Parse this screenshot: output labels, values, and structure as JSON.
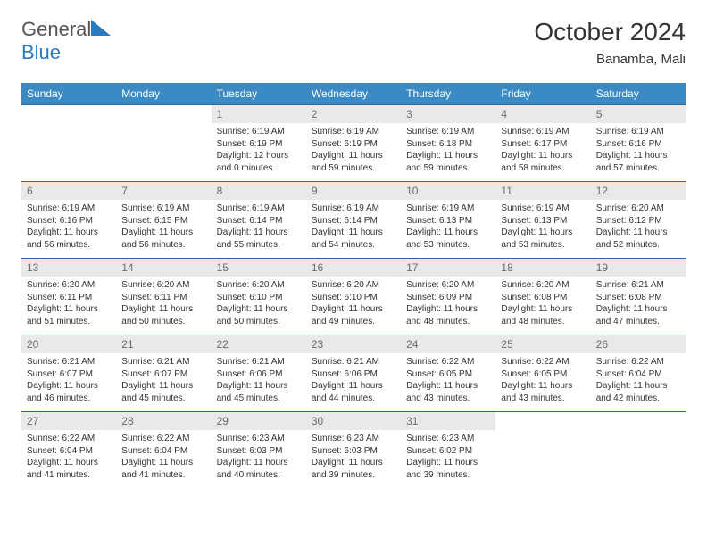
{
  "brand": {
    "name_a": "General",
    "name_b": "Blue",
    "tri_color": "#2a7bbf"
  },
  "title": "October 2024",
  "location": "Banamba, Mali",
  "days_of_week": [
    "Sunday",
    "Monday",
    "Tuesday",
    "Wednesday",
    "Thursday",
    "Friday",
    "Saturday"
  ],
  "header_bg": "#3b8ac4",
  "cells": [
    [
      {
        "n": "",
        "sr": "",
        "ss": "",
        "dl": ""
      },
      {
        "n": "",
        "sr": "",
        "ss": "",
        "dl": ""
      },
      {
        "n": "1",
        "sr": "Sunrise: 6:19 AM",
        "ss": "Sunset: 6:19 PM",
        "dl": "Daylight: 12 hours and 0 minutes."
      },
      {
        "n": "2",
        "sr": "Sunrise: 6:19 AM",
        "ss": "Sunset: 6:19 PM",
        "dl": "Daylight: 11 hours and 59 minutes."
      },
      {
        "n": "3",
        "sr": "Sunrise: 6:19 AM",
        "ss": "Sunset: 6:18 PM",
        "dl": "Daylight: 11 hours and 59 minutes."
      },
      {
        "n": "4",
        "sr": "Sunrise: 6:19 AM",
        "ss": "Sunset: 6:17 PM",
        "dl": "Daylight: 11 hours and 58 minutes."
      },
      {
        "n": "5",
        "sr": "Sunrise: 6:19 AM",
        "ss": "Sunset: 6:16 PM",
        "dl": "Daylight: 11 hours and 57 minutes."
      }
    ],
    [
      {
        "n": "6",
        "sr": "Sunrise: 6:19 AM",
        "ss": "Sunset: 6:16 PM",
        "dl": "Daylight: 11 hours and 56 minutes."
      },
      {
        "n": "7",
        "sr": "Sunrise: 6:19 AM",
        "ss": "Sunset: 6:15 PM",
        "dl": "Daylight: 11 hours and 56 minutes."
      },
      {
        "n": "8",
        "sr": "Sunrise: 6:19 AM",
        "ss": "Sunset: 6:14 PM",
        "dl": "Daylight: 11 hours and 55 minutes."
      },
      {
        "n": "9",
        "sr": "Sunrise: 6:19 AM",
        "ss": "Sunset: 6:14 PM",
        "dl": "Daylight: 11 hours and 54 minutes."
      },
      {
        "n": "10",
        "sr": "Sunrise: 6:19 AM",
        "ss": "Sunset: 6:13 PM",
        "dl": "Daylight: 11 hours and 53 minutes."
      },
      {
        "n": "11",
        "sr": "Sunrise: 6:19 AM",
        "ss": "Sunset: 6:13 PM",
        "dl": "Daylight: 11 hours and 53 minutes."
      },
      {
        "n": "12",
        "sr": "Sunrise: 6:20 AM",
        "ss": "Sunset: 6:12 PM",
        "dl": "Daylight: 11 hours and 52 minutes."
      }
    ],
    [
      {
        "n": "13",
        "sr": "Sunrise: 6:20 AM",
        "ss": "Sunset: 6:11 PM",
        "dl": "Daylight: 11 hours and 51 minutes."
      },
      {
        "n": "14",
        "sr": "Sunrise: 6:20 AM",
        "ss": "Sunset: 6:11 PM",
        "dl": "Daylight: 11 hours and 50 minutes."
      },
      {
        "n": "15",
        "sr": "Sunrise: 6:20 AM",
        "ss": "Sunset: 6:10 PM",
        "dl": "Daylight: 11 hours and 50 minutes."
      },
      {
        "n": "16",
        "sr": "Sunrise: 6:20 AM",
        "ss": "Sunset: 6:10 PM",
        "dl": "Daylight: 11 hours and 49 minutes."
      },
      {
        "n": "17",
        "sr": "Sunrise: 6:20 AM",
        "ss": "Sunset: 6:09 PM",
        "dl": "Daylight: 11 hours and 48 minutes."
      },
      {
        "n": "18",
        "sr": "Sunrise: 6:20 AM",
        "ss": "Sunset: 6:08 PM",
        "dl": "Daylight: 11 hours and 48 minutes."
      },
      {
        "n": "19",
        "sr": "Sunrise: 6:21 AM",
        "ss": "Sunset: 6:08 PM",
        "dl": "Daylight: 11 hours and 47 minutes."
      }
    ],
    [
      {
        "n": "20",
        "sr": "Sunrise: 6:21 AM",
        "ss": "Sunset: 6:07 PM",
        "dl": "Daylight: 11 hours and 46 minutes."
      },
      {
        "n": "21",
        "sr": "Sunrise: 6:21 AM",
        "ss": "Sunset: 6:07 PM",
        "dl": "Daylight: 11 hours and 45 minutes."
      },
      {
        "n": "22",
        "sr": "Sunrise: 6:21 AM",
        "ss": "Sunset: 6:06 PM",
        "dl": "Daylight: 11 hours and 45 minutes."
      },
      {
        "n": "23",
        "sr": "Sunrise: 6:21 AM",
        "ss": "Sunset: 6:06 PM",
        "dl": "Daylight: 11 hours and 44 minutes."
      },
      {
        "n": "24",
        "sr": "Sunrise: 6:22 AM",
        "ss": "Sunset: 6:05 PM",
        "dl": "Daylight: 11 hours and 43 minutes."
      },
      {
        "n": "25",
        "sr": "Sunrise: 6:22 AM",
        "ss": "Sunset: 6:05 PM",
        "dl": "Daylight: 11 hours and 43 minutes."
      },
      {
        "n": "26",
        "sr": "Sunrise: 6:22 AM",
        "ss": "Sunset: 6:04 PM",
        "dl": "Daylight: 11 hours and 42 minutes."
      }
    ],
    [
      {
        "n": "27",
        "sr": "Sunrise: 6:22 AM",
        "ss": "Sunset: 6:04 PM",
        "dl": "Daylight: 11 hours and 41 minutes."
      },
      {
        "n": "28",
        "sr": "Sunrise: 6:22 AM",
        "ss": "Sunset: 6:04 PM",
        "dl": "Daylight: 11 hours and 41 minutes."
      },
      {
        "n": "29",
        "sr": "Sunrise: 6:23 AM",
        "ss": "Sunset: 6:03 PM",
        "dl": "Daylight: 11 hours and 40 minutes."
      },
      {
        "n": "30",
        "sr": "Sunrise: 6:23 AM",
        "ss": "Sunset: 6:03 PM",
        "dl": "Daylight: 11 hours and 39 minutes."
      },
      {
        "n": "31",
        "sr": "Sunrise: 6:23 AM",
        "ss": "Sunset: 6:02 PM",
        "dl": "Daylight: 11 hours and 39 minutes."
      },
      {
        "n": "",
        "sr": "",
        "ss": "",
        "dl": ""
      },
      {
        "n": "",
        "sr": "",
        "ss": "",
        "dl": ""
      }
    ]
  ]
}
